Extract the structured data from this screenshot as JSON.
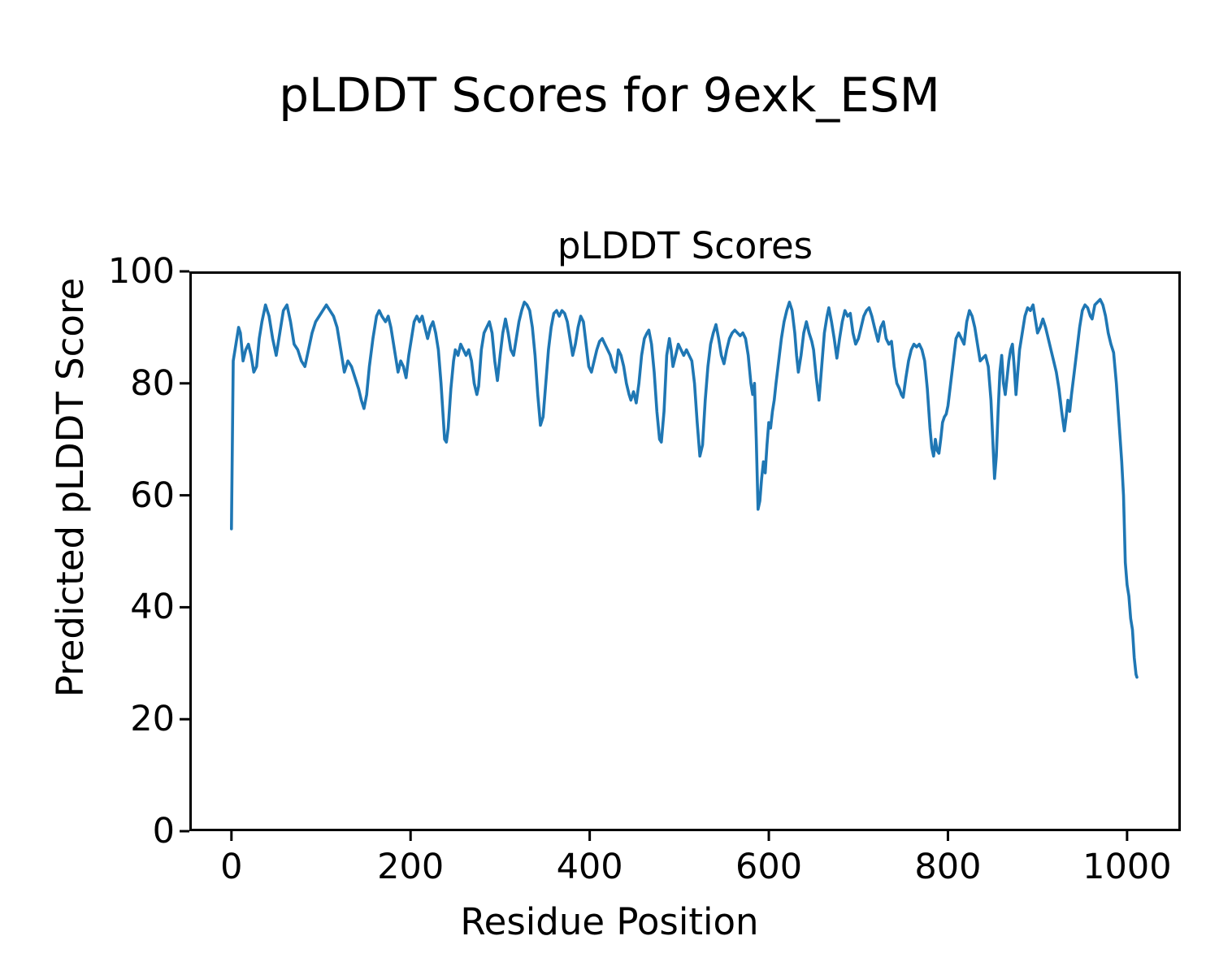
{
  "figure": {
    "suptitle": "pLDDT Scores for 9exk_ESM",
    "background_color": "#ffffff",
    "text_color": "#000000"
  },
  "chart_data": {
    "type": "line",
    "title": "pLDDT Scores",
    "xlabel": "Residue Position",
    "ylabel": "Predicted pLDDT Score",
    "xlim": [
      -47,
      1060
    ],
    "ylim": [
      0,
      100
    ],
    "xticks": [
      0,
      200,
      400,
      600,
      800,
      1000
    ],
    "yticks": [
      0,
      20,
      40,
      60,
      80,
      100
    ],
    "grid": false,
    "legend_position": "none",
    "line_color": "#1f77b4",
    "axis_color": "#000000",
    "x": [
      0,
      2,
      4,
      6,
      8,
      10,
      13,
      16,
      19,
      22,
      25,
      28,
      31,
      34,
      38,
      42,
      46,
      50,
      54,
      58,
      62,
      66,
      70,
      74,
      78,
      82,
      86,
      90,
      94,
      98,
      102,
      106,
      110,
      114,
      118,
      122,
      126,
      130,
      134,
      138,
      142,
      145,
      148,
      151,
      154,
      158,
      162,
      165,
      168,
      172,
      175,
      178,
      182,
      186,
      189,
      192,
      195,
      198,
      201,
      204,
      207,
      210,
      213,
      216,
      219,
      222,
      225,
      228,
      231,
      234,
      236,
      238,
      240,
      242,
      245,
      248,
      250,
      253,
      256,
      259,
      262,
      265,
      268,
      271,
      274,
      276,
      279,
      282,
      285,
      288,
      291,
      294,
      297,
      300,
      303,
      306,
      309,
      312,
      315,
      318,
      321,
      324,
      327,
      330,
      333,
      336,
      339,
      342,
      345,
      348,
      351,
      354,
      357,
      360,
      363,
      366,
      369,
      372,
      375,
      378,
      381,
      384,
      387,
      390,
      393,
      396,
      399,
      402,
      405,
      408,
      411,
      414,
      417,
      420,
      423,
      426,
      429,
      432,
      435,
      438,
      441,
      444,
      446,
      449,
      452,
      455,
      458,
      461,
      464,
      466,
      469,
      472,
      475,
      478,
      480,
      483,
      486,
      489,
      491,
      493,
      496,
      499,
      502,
      505,
      508,
      511,
      514,
      517,
      520,
      523,
      526,
      529,
      532,
      535,
      538,
      541,
      544,
      547,
      550,
      553,
      556,
      559,
      562,
      565,
      568,
      571,
      574,
      577,
      580,
      582,
      584,
      586,
      588,
      590,
      592,
      594,
      596,
      598,
      600,
      602,
      604,
      606,
      608,
      611,
      614,
      617,
      620,
      623,
      626,
      629,
      631,
      633,
      636,
      639,
      642,
      645,
      648,
      650,
      653,
      656,
      659,
      662,
      665,
      667,
      670,
      673,
      676,
      679,
      682,
      685,
      688,
      691,
      694,
      697,
      700,
      703,
      706,
      709,
      712,
      715,
      718,
      722,
      725,
      728,
      731,
      734,
      737,
      740,
      743,
      746,
      748,
      750,
      753,
      756,
      759,
      762,
      765,
      768,
      771,
      774,
      777,
      780,
      782,
      784,
      786,
      788,
      790,
      792,
      794,
      796,
      798,
      800,
      803,
      806,
      809,
      812,
      815,
      818,
      821,
      824,
      827,
      830,
      833,
      836,
      839,
      842,
      845,
      848,
      850,
      852,
      854,
      856,
      858,
      860,
      862,
      864,
      866,
      868,
      870,
      872,
      874,
      876,
      878,
      880,
      883,
      886,
      889,
      892,
      895,
      898,
      900,
      903,
      906,
      909,
      912,
      915,
      918,
      921,
      924,
      927,
      930,
      932,
      934,
      936,
      938,
      941,
      944,
      947,
      950,
      953,
      956,
      959,
      961,
      964,
      967,
      970,
      973,
      976,
      979,
      982,
      985,
      988,
      991,
      994,
      996,
      998,
      1000,
      1002,
      1004,
      1006,
      1008,
      1010,
      1011
    ],
    "y": [
      54,
      84,
      86,
      88,
      90,
      89,
      84,
      86,
      87,
      85,
      82,
      83,
      88,
      91,
      94,
      92,
      88,
      85,
      89,
      93,
      94,
      91,
      87,
      86,
      84,
      83,
      86,
      89,
      91,
      92,
      93,
      94,
      93,
      92,
      90,
      86,
      82,
      84,
      83,
      81,
      79,
      77,
      75.5,
      78,
      83,
      88,
      92,
      93,
      92,
      91,
      92,
      90,
      86,
      82,
      84,
      83,
      81,
      85,
      88,
      91,
      92,
      91,
      92,
      90,
      88,
      90,
      91,
      89,
      86,
      80,
      75,
      70,
      69.5,
      72,
      79,
      84,
      86,
      85,
      87,
      86,
      85,
      86,
      84,
      80,
      78,
      79.5,
      86,
      89,
      90,
      91,
      89,
      84,
      80.5,
      85,
      89,
      91.5,
      89,
      86,
      85,
      88,
      91,
      93,
      94.5,
      94,
      93,
      90,
      85,
      78,
      72.5,
      74,
      80,
      86,
      90,
      92.5,
      93,
      92,
      93,
      92.5,
      91,
      88,
      85,
      87,
      90,
      92,
      91,
      87,
      83,
      82,
      84,
      86,
      87.5,
      88,
      87,
      86,
      85,
      83,
      82,
      86,
      85,
      83,
      80,
      78,
      77,
      78.5,
      76.5,
      80,
      85,
      88,
      89,
      89.5,
      87,
      82,
      75,
      70,
      69.5,
      75,
      85,
      88,
      86,
      83,
      85,
      87,
      86,
      85,
      86,
      85,
      84,
      80,
      73,
      67,
      69,
      77,
      83,
      87,
      89,
      90.5,
      88,
      85,
      83.5,
      86,
      88,
      89,
      89.5,
      89,
      88.5,
      89,
      88,
      85,
      80,
      78,
      80,
      70,
      57.5,
      59,
      63,
      66,
      64,
      69,
      73,
      72,
      75,
      77,
      80,
      84,
      88,
      91,
      93,
      94.5,
      93,
      89,
      85,
      82,
      85,
      89,
      91,
      89,
      87.5,
      86,
      81,
      77,
      83,
      89,
      92,
      93.5,
      91,
      88,
      84.5,
      88,
      91,
      93,
      92,
      92.5,
      89,
      87,
      88,
      90,
      92,
      93,
      93.5,
      92,
      90,
      87.5,
      90,
      91,
      88,
      87,
      87.5,
      83,
      80,
      79,
      78,
      77.5,
      81,
      84,
      86,
      87,
      86.5,
      87,
      86,
      84,
      79,
      72,
      68.5,
      67,
      70,
      68,
      67.5,
      70,
      73,
      74,
      74.5,
      76,
      80,
      84,
      88,
      89,
      88,
      87,
      91,
      93,
      92,
      90,
      87,
      84,
      84.5,
      85,
      83,
      77,
      70,
      63,
      67,
      75,
      82,
      85,
      80,
      78,
      81,
      84,
      86,
      87,
      83,
      78,
      82,
      86,
      89,
      92,
      93.5,
      93,
      94,
      91,
      89,
      90,
      91.5,
      90,
      88,
      86,
      84,
      82,
      79,
      75,
      71.5,
      74,
      77,
      75,
      78,
      82,
      86,
      90,
      93,
      94,
      93.5,
      92,
      91.5,
      94,
      94.5,
      95,
      94,
      92,
      89,
      87,
      85.5,
      80,
      73,
      66,
      60,
      48,
      44,
      42,
      38,
      36,
      31,
      28,
      27.5
    ]
  }
}
